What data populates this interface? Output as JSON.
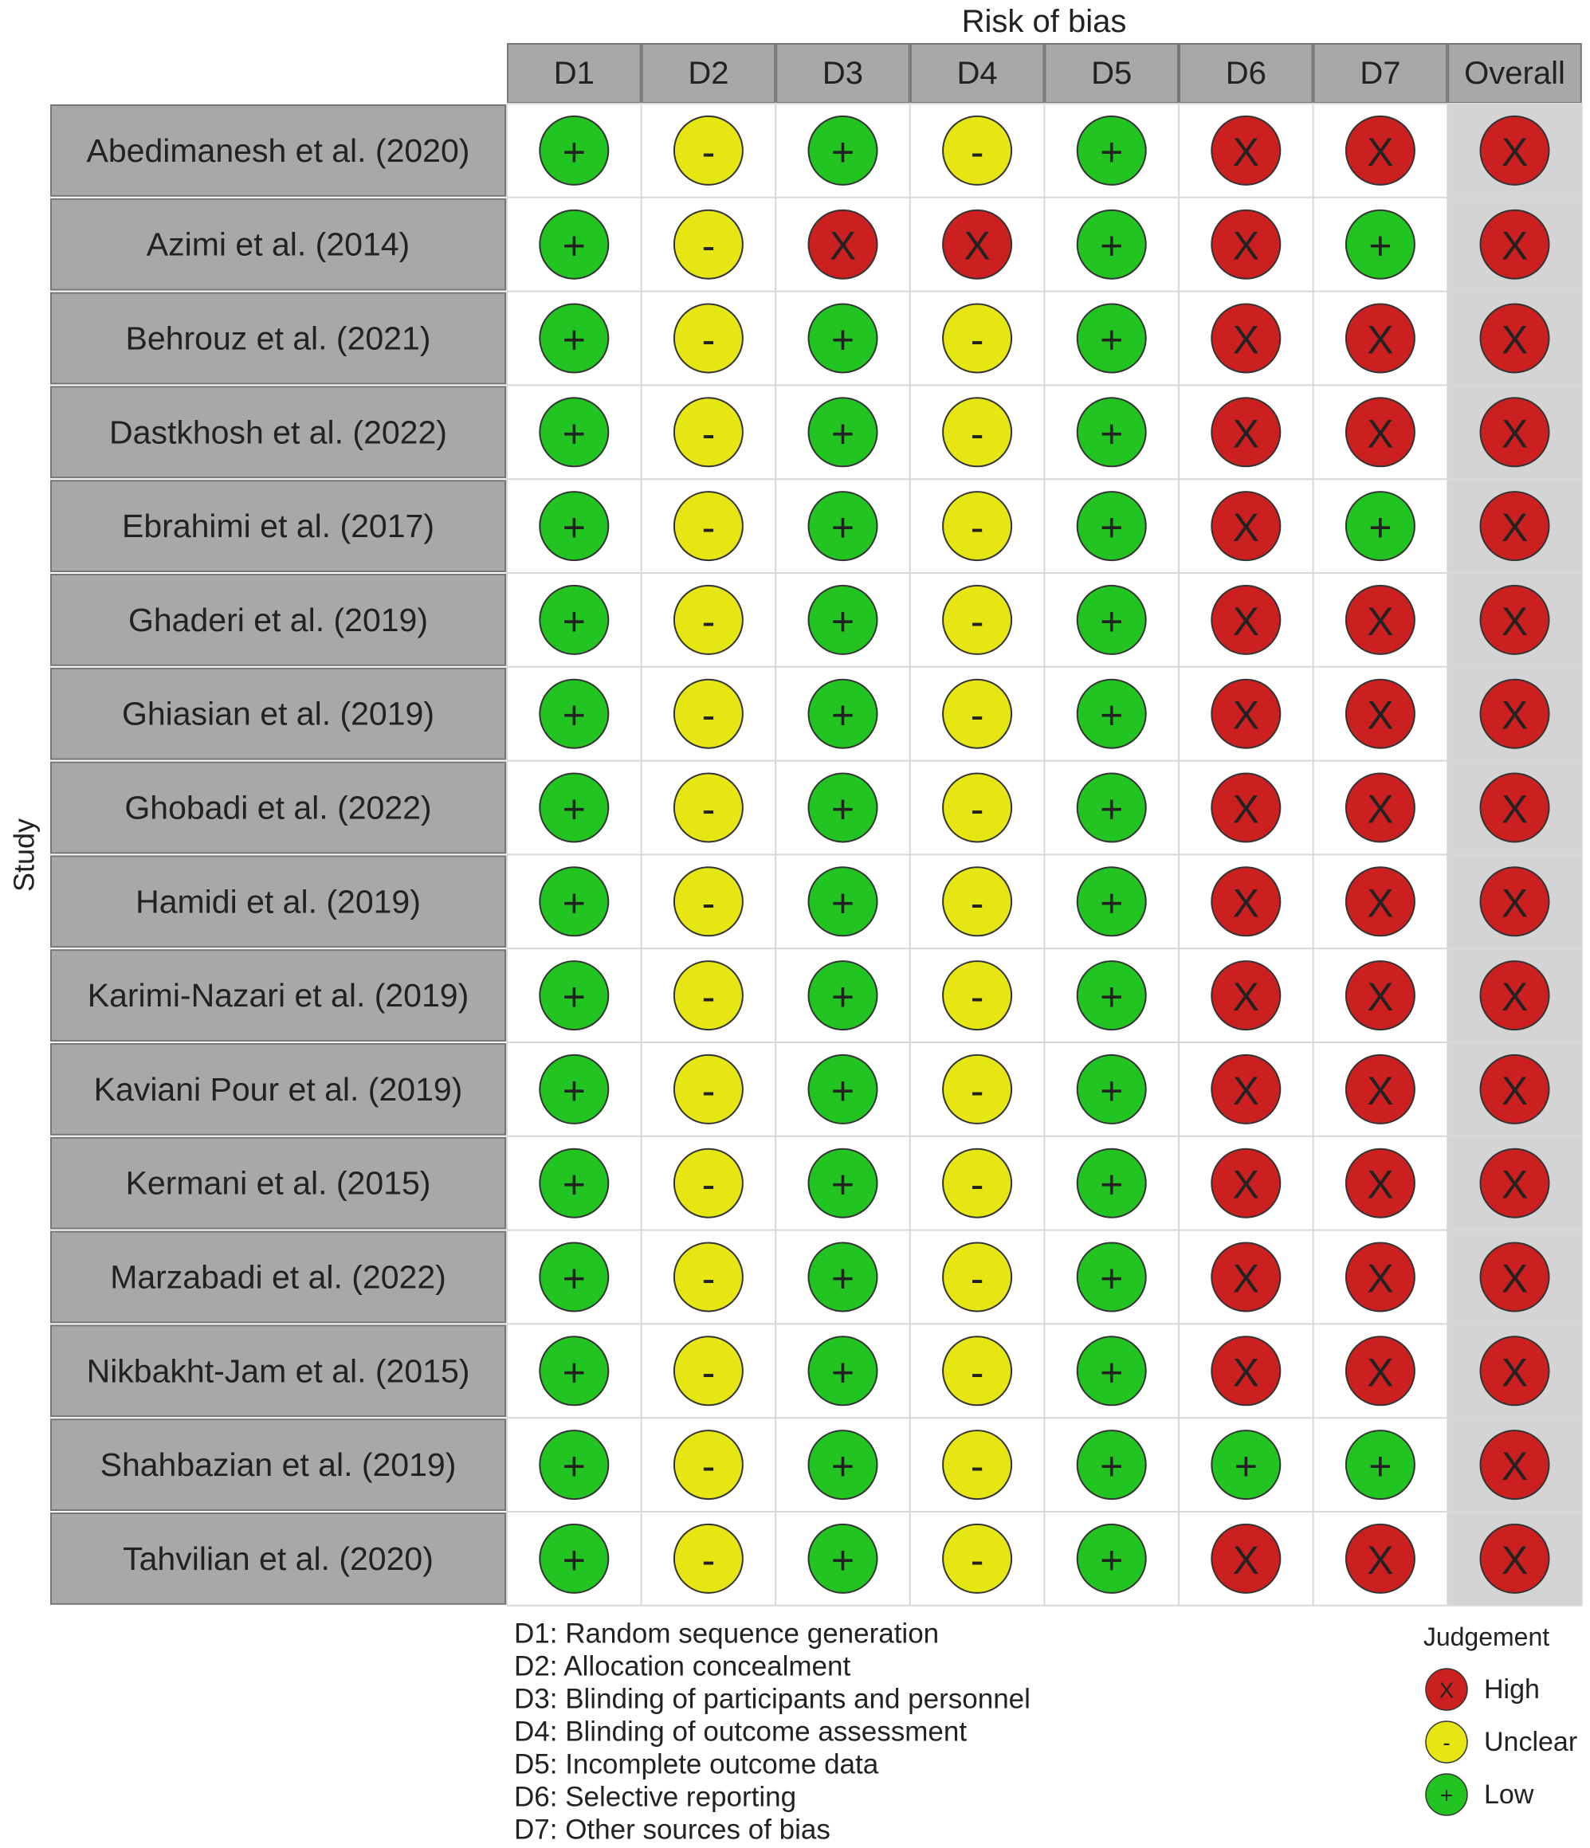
{
  "title": "Risk of bias",
  "y_label": "Study",
  "domains": [
    "D1",
    "D2",
    "D3",
    "D4",
    "D5",
    "D6",
    "D7",
    "Overall"
  ],
  "rows": [
    {
      "study": "Abedimanesh et al. (2020)",
      "judgements": [
        "+",
        "-",
        "+",
        "-",
        "+",
        "X",
        "X",
        "X"
      ]
    },
    {
      "study": "Azimi et al. (2014)",
      "judgements": [
        "+",
        "-",
        "X",
        "X",
        "+",
        "X",
        "+",
        "X"
      ]
    },
    {
      "study": "Behrouz et al. (2021)",
      "judgements": [
        "+",
        "-",
        "+",
        "-",
        "+",
        "X",
        "X",
        "X"
      ]
    },
    {
      "study": "Dastkhosh et al. (2022)",
      "judgements": [
        "+",
        "-",
        "+",
        "-",
        "+",
        "X",
        "X",
        "X"
      ]
    },
    {
      "study": "Ebrahimi et al. (2017)",
      "judgements": [
        "+",
        "-",
        "+",
        "-",
        "+",
        "X",
        "+",
        "X"
      ]
    },
    {
      "study": "Ghaderi et al. (2019)",
      "judgements": [
        "+",
        "-",
        "+",
        "-",
        "+",
        "X",
        "X",
        "X"
      ]
    },
    {
      "study": "Ghiasian et al. (2019)",
      "judgements": [
        "+",
        "-",
        "+",
        "-",
        "+",
        "X",
        "X",
        "X"
      ]
    },
    {
      "study": "Ghobadi et al. (2022)",
      "judgements": [
        "+",
        "-",
        "+",
        "-",
        "+",
        "X",
        "X",
        "X"
      ]
    },
    {
      "study": "Hamidi et al. (2019)",
      "judgements": [
        "+",
        "-",
        "+",
        "-",
        "+",
        "X",
        "X",
        "X"
      ]
    },
    {
      "study": "Karimi-Nazari et al. (2019)",
      "judgements": [
        "+",
        "-",
        "+",
        "-",
        "+",
        "X",
        "X",
        "X"
      ]
    },
    {
      "study": "Kaviani Pour et al. (2019)",
      "judgements": [
        "+",
        "-",
        "+",
        "-",
        "+",
        "X",
        "X",
        "X"
      ]
    },
    {
      "study": "Kermani et al. (2015)",
      "judgements": [
        "+",
        "-",
        "+",
        "-",
        "+",
        "X",
        "X",
        "X"
      ]
    },
    {
      "study": "Marzabadi et al. (2022)",
      "judgements": [
        "+",
        "-",
        "+",
        "-",
        "+",
        "X",
        "X",
        "X"
      ]
    },
    {
      "study": "Nikbakht-Jam et al. (2015)",
      "judgements": [
        "+",
        "-",
        "+",
        "-",
        "+",
        "X",
        "X",
        "X"
      ]
    },
    {
      "study": "Shahbazian et al. (2019)",
      "judgements": [
        "+",
        "-",
        "+",
        "-",
        "+",
        "+",
        "+",
        "X"
      ]
    },
    {
      "study": "Tahvilian et al. (2020)",
      "judgements": [
        "+",
        "-",
        "+",
        "-",
        "+",
        "X",
        "X",
        "X"
      ]
    }
  ],
  "footnotes": [
    "D1: Random sequence generation",
    "D2: Allocation concealment",
    "D3: Blinding of participants and personnel",
    "D4: Blinding of outcome assessment",
    "D5: Incomplete outcome data",
    "D6: Selective reporting",
    "D7: Other sources of bias"
  ],
  "legend": {
    "title": "Judgement",
    "items": [
      {
        "symbol": "X",
        "label": "High",
        "color": "#cc2020"
      },
      {
        "symbol": "-",
        "label": "Unclear",
        "color": "#e6e612"
      },
      {
        "symbol": "+",
        "label": "Low",
        "color": "#22c422"
      }
    ]
  }
}
